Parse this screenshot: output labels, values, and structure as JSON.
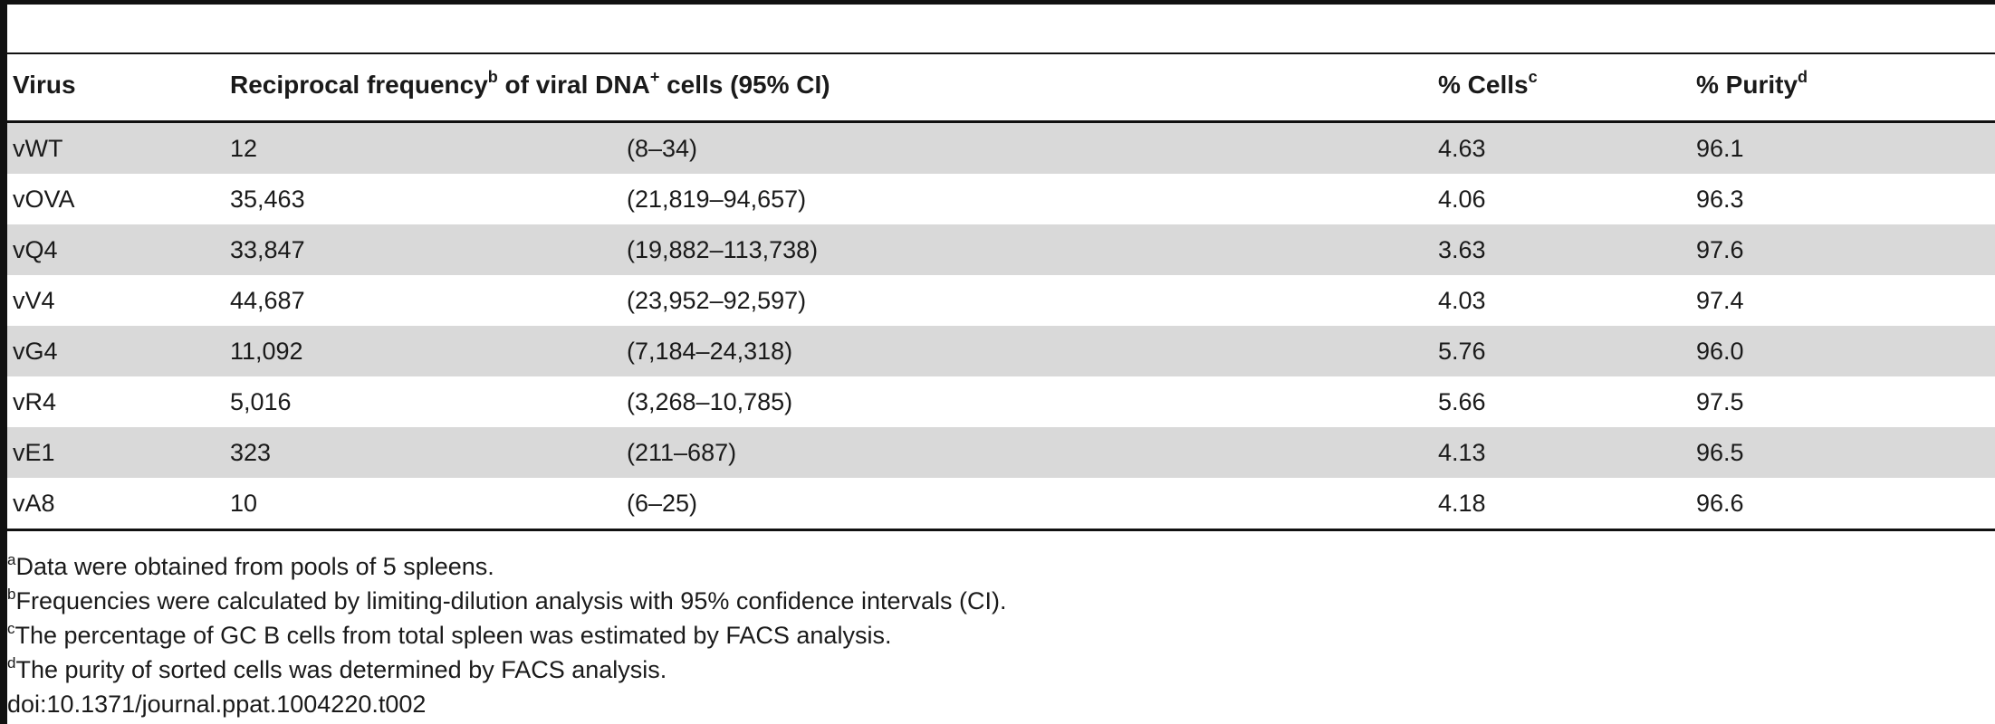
{
  "table": {
    "headers": {
      "virus": "Virus",
      "freq_pre": "Reciprocal frequency",
      "freq_sup": "b",
      "freq_post": " of viral DNA",
      "freq_sup2": "+",
      "freq_post2": " cells (95% CI)",
      "cells": "% Cells",
      "cells_sup": "c",
      "purity": "% Purity",
      "purity_sup": "d"
    },
    "rows": [
      {
        "virus": "vWT",
        "freq": "12",
        "ci": "(8–34)",
        "cells": "4.63",
        "purity": "96.1"
      },
      {
        "virus": "vOVA",
        "freq": "35,463",
        "ci": "(21,819–94,657)",
        "cells": "4.06",
        "purity": "96.3"
      },
      {
        "virus": "vQ4",
        "freq": "33,847",
        "ci": "(19,882–113,738)",
        "cells": "3.63",
        "purity": "97.6"
      },
      {
        "virus": "vV4",
        "freq": "44,687",
        "ci": "(23,952–92,597)",
        "cells": "4.03",
        "purity": "97.4"
      },
      {
        "virus": "vG4",
        "freq": "11,092",
        "ci": "(7,184–24,318)",
        "cells": "5.76",
        "purity": "96.0"
      },
      {
        "virus": "vR4",
        "freq": "5,016",
        "ci": "(3,268–10,785)",
        "cells": "5.66",
        "purity": "97.5"
      },
      {
        "virus": "vE1",
        "freq": "323",
        "ci": "(211–687)",
        "cells": "4.13",
        "purity": "96.5"
      },
      {
        "virus": "vA8",
        "freq": "10",
        "ci": "(6–25)",
        "cells": "4.18",
        "purity": "96.6"
      }
    ]
  },
  "footnotes": [
    {
      "mark": "a",
      "text": "Data were obtained from pools of 5 spleens."
    },
    {
      "mark": "b",
      "text": "Frequencies were calculated by limiting-dilution analysis with 95% confidence intervals (CI)."
    },
    {
      "mark": "c",
      "text": "The percentage of GC B cells from total spleen was estimated by FACS analysis."
    },
    {
      "mark": "d",
      "text": "The purity of sorted cells was determined by FACS analysis."
    }
  ],
  "doi": "doi:10.1371/journal.ppat.1004220.t002"
}
